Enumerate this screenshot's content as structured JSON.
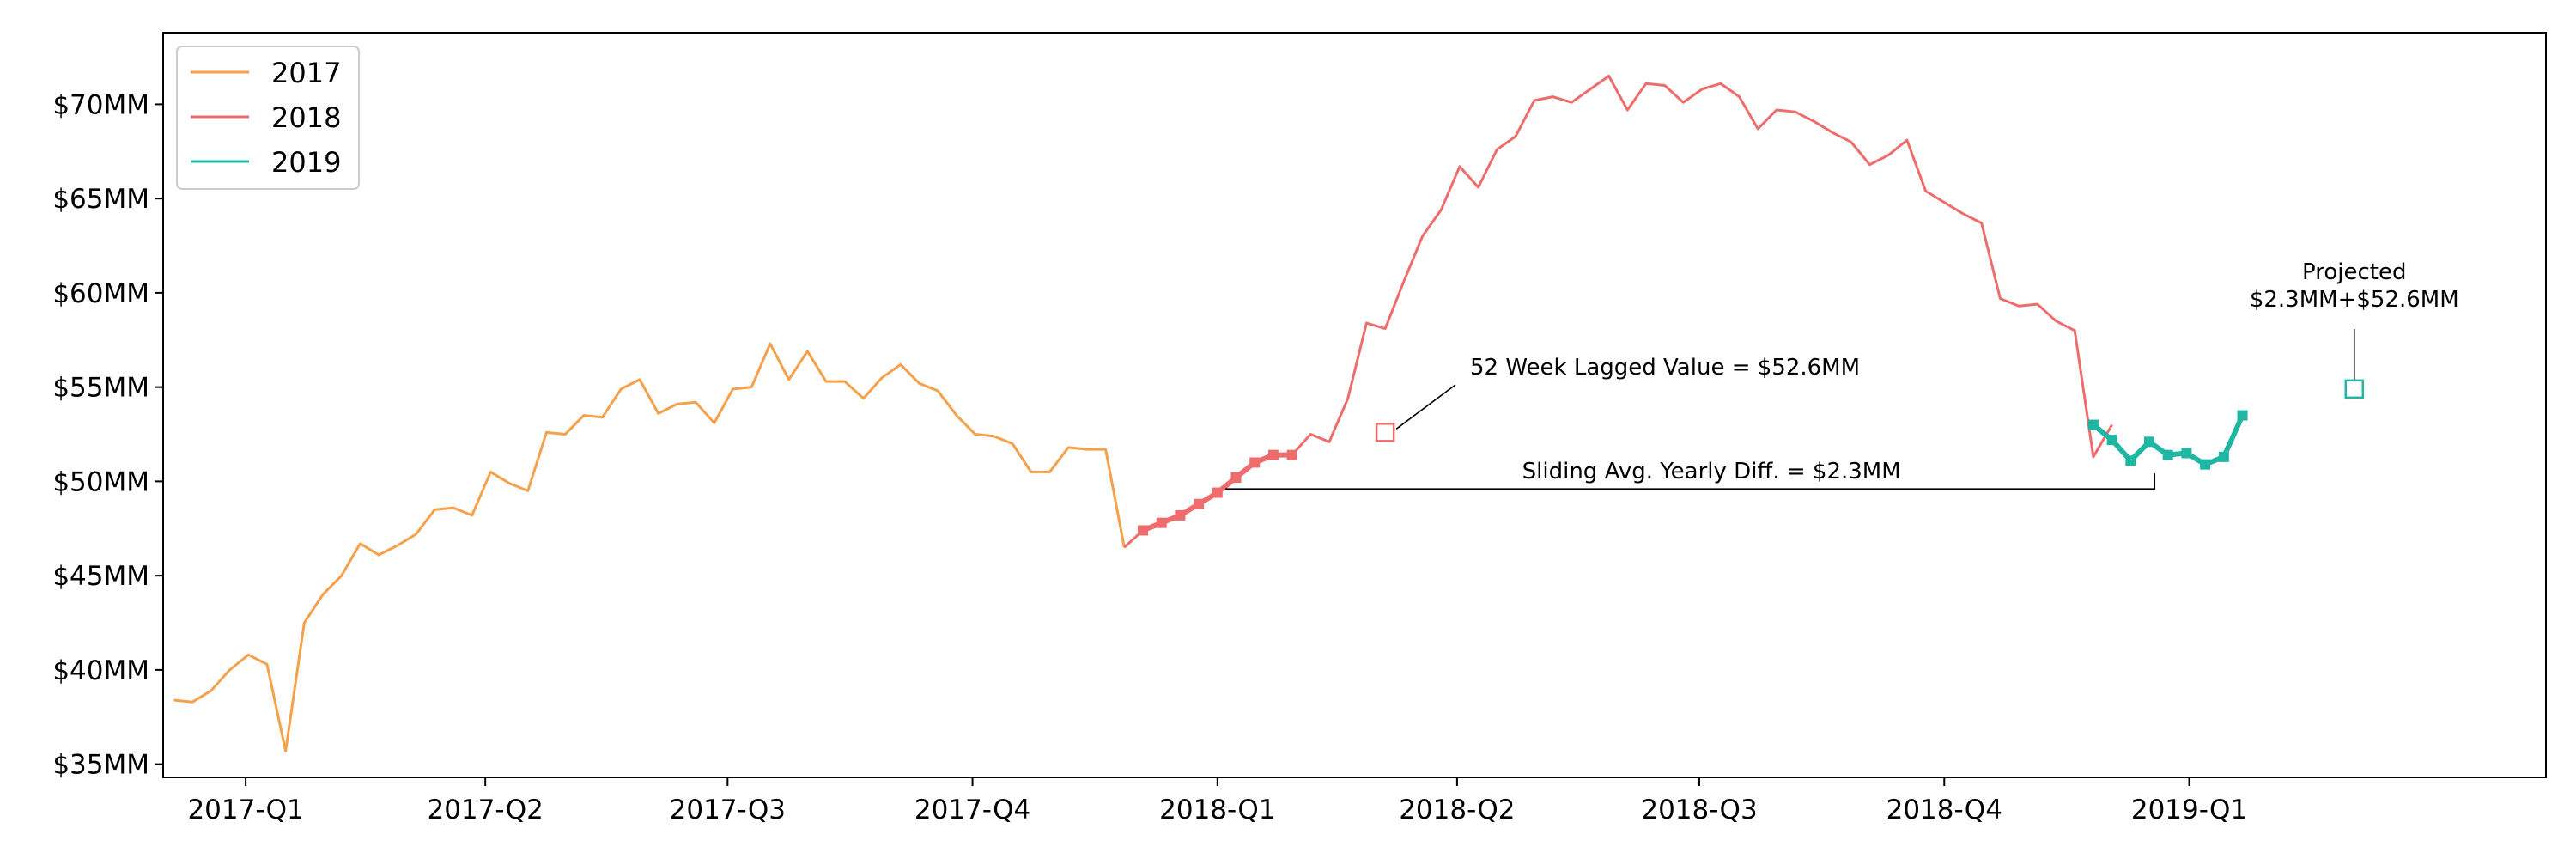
{
  "chart_data": {
    "type": "line",
    "title": "",
    "xlabel": "",
    "ylabel": "",
    "ylim": [
      34300000,
      73800000
    ],
    "y_ticks": [
      {
        "value": 35000000,
        "label": "$35MM"
      },
      {
        "value": 40000000,
        "label": "$40MM"
      },
      {
        "value": 45000000,
        "label": "$45MM"
      },
      {
        "value": 50000000,
        "label": "$50MM"
      },
      {
        "value": 55000000,
        "label": "$55MM"
      },
      {
        "value": 60000000,
        "label": "$60MM"
      },
      {
        "value": 65000000,
        "label": "$65MM"
      },
      {
        "value": 70000000,
        "label": "$70MM"
      }
    ],
    "x_range": [
      "2016-12-01",
      "2019-05-15"
    ],
    "x_ticks": [
      {
        "date": "2017-01-01",
        "label": "2017-Q1"
      },
      {
        "date": "2017-04-01",
        "label": "2017-Q2"
      },
      {
        "date": "2017-07-01",
        "label": "2017-Q3"
      },
      {
        "date": "2017-10-01",
        "label": "2017-Q4"
      },
      {
        "date": "2018-01-01",
        "label": "2018-Q1"
      },
      {
        "date": "2018-04-01",
        "label": "2018-Q2"
      },
      {
        "date": "2018-07-01",
        "label": "2018-Q3"
      },
      {
        "date": "2018-10-01",
        "label": "2018-Q4"
      },
      {
        "date": "2019-01-01",
        "label": "2019-Q1"
      }
    ],
    "grid": false,
    "legend": {
      "placement": "top-left"
    },
    "series": [
      {
        "name": "2017",
        "color": "#f5a04a",
        "start_date": "2016-12-05",
        "interval_days": 7,
        "values": [
          38.4,
          38.3,
          38.9,
          40.0,
          40.8,
          40.3,
          35.7,
          42.5,
          44.0,
          45.0,
          46.7,
          46.1,
          46.6,
          47.2,
          48.5,
          48.6,
          48.2,
          50.5,
          49.9,
          49.5,
          52.6,
          52.5,
          53.5,
          53.4,
          54.9,
          55.4,
          53.6,
          54.1,
          54.2,
          53.1,
          54.9,
          55.0,
          57.3,
          55.4,
          56.9,
          55.3,
          55.3,
          54.4,
          55.5,
          56.2,
          55.2,
          54.8,
          53.5,
          52.5,
          52.4,
          52.0,
          50.5,
          50.5,
          51.8,
          51.7,
          51.7,
          46.5
        ],
        "highlight_values": []
      },
      {
        "name": "2018",
        "color": "#ef6c6c",
        "start_date": "2017-11-27",
        "interval_days": 7,
        "values": [
          46.5,
          47.4,
          47.8,
          48.2,
          48.8,
          49.4,
          50.2,
          51.0,
          51.4,
          51.4,
          52.5,
          52.1,
          54.4,
          58.4,
          58.1,
          60.6,
          63.0,
          64.4,
          66.7,
          65.6,
          67.6,
          68.3,
          70.2,
          70.4,
          70.1,
          70.8,
          71.5,
          69.7,
          71.1,
          71.0,
          70.1,
          70.8,
          71.1,
          70.4,
          68.7,
          69.7,
          69.6,
          69.1,
          68.5,
          68.0,
          66.8,
          67.3,
          68.1,
          65.4,
          64.8,
          64.2,
          63.7,
          59.7,
          59.3,
          59.4,
          58.5,
          58.0,
          51.3,
          53.0
        ],
        "highlight_values": [
          47.4,
          47.8,
          48.2,
          48.8,
          49.4,
          50.2,
          51.0,
          51.4,
          51.4
        ]
      },
      {
        "name": "2019",
        "color": "#1fb6a4",
        "start_date": "2018-11-26",
        "interval_days": 7,
        "values": [
          53.0,
          52.2,
          51.1,
          52.1,
          51.4,
          51.5,
          50.9,
          51.3,
          53.5
        ],
        "highlight_values": [
          53.0,
          52.2,
          51.1,
          52.1,
          51.4,
          51.5,
          50.9,
          51.3,
          53.5
        ]
      }
    ],
    "annotations": [
      {
        "text": "52 Week Lagged Value = $52.6MM",
        "point": {
          "date": "2018-03-05",
          "value": 52.6
        },
        "color": "#ef6c6c"
      },
      {
        "text": "Sliding Avg. Yearly Diff. = $2.3MM",
        "span": [
          "2018-01-04",
          "2018-12-19"
        ],
        "value": 49.6
      },
      {
        "text_lines": [
          "Projected",
          "$2.3MM+$52.6MM"
        ],
        "point": {
          "date": "2019-03-04",
          "value": 54.9
        },
        "color": "#1fb6a4"
      }
    ]
  }
}
